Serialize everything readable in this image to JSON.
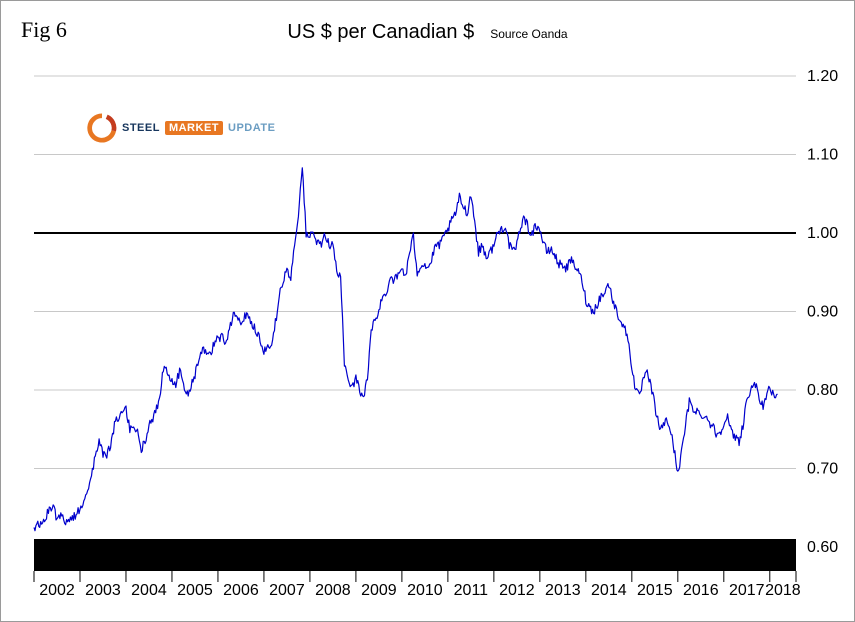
{
  "figure": {
    "label": "Fig 6",
    "title": "US $ per Canadian $",
    "source": "Source Oanda"
  },
  "logo": {
    "word1": "STEEL",
    "word2": "MARKET",
    "word3": "UPDATE",
    "swoosh_color": "#e87722",
    "swoosh_color2": "#c43c1e"
  },
  "chart_data": {
    "type": "line",
    "title": "US $ per Canadian $",
    "source": "Source Oanda",
    "frequency": "monthly",
    "start": "2002-01",
    "end": "2018-03",
    "x_tick_labels": [
      "2002",
      "2003",
      "2004",
      "2005",
      "2006",
      "2007",
      "2008",
      "2009",
      "2010",
      "2011",
      "2012",
      "2013",
      "2014",
      "2015",
      "2016",
      "2017",
      "2018"
    ],
    "y_ticks": [
      0.6,
      0.7,
      0.8,
      0.9,
      1.0,
      1.1,
      1.2
    ],
    "ylim": [
      0.6,
      1.2
    ],
    "xlim": [
      2002,
      2018.57
    ],
    "reference_line": 1.0,
    "grid": true,
    "line_color": "#0000cc",
    "axis_band_color": "#000000",
    "series": [
      {
        "name": "US $ per Canadian $",
        "values": [
          0.625,
          0.627,
          0.63,
          0.636,
          0.648,
          0.655,
          0.635,
          0.64,
          0.633,
          0.635,
          0.637,
          0.64,
          0.65,
          0.66,
          0.675,
          0.69,
          0.715,
          0.735,
          0.72,
          0.715,
          0.73,
          0.755,
          0.765,
          0.77,
          0.775,
          0.75,
          0.755,
          0.745,
          0.725,
          0.735,
          0.755,
          0.765,
          0.775,
          0.8,
          0.835,
          0.82,
          0.815,
          0.805,
          0.825,
          0.805,
          0.795,
          0.805,
          0.82,
          0.835,
          0.85,
          0.85,
          0.845,
          0.86,
          0.865,
          0.87,
          0.86,
          0.875,
          0.9,
          0.895,
          0.885,
          0.895,
          0.895,
          0.885,
          0.875,
          0.865,
          0.85,
          0.855,
          0.855,
          0.885,
          0.92,
          0.94,
          0.95,
          0.945,
          0.985,
          1.025,
          1.085,
          1.0,
          0.995,
          1.0,
          0.985,
          0.985,
          1.0,
          0.985,
          0.985,
          0.95,
          0.945,
          0.83,
          0.815,
          0.805,
          0.815,
          0.8,
          0.79,
          0.815,
          0.875,
          0.89,
          0.9,
          0.92,
          0.925,
          0.945,
          0.94,
          0.945,
          0.955,
          0.945,
          0.975,
          0.995,
          0.95,
          0.96,
          0.96,
          0.955,
          0.97,
          0.985,
          0.985,
          0.995,
          1.005,
          1.015,
          1.025,
          1.045,
          1.035,
          1.025,
          1.05,
          1.015,
          0.975,
          0.985,
          0.97,
          0.975,
          0.985,
          1.0,
          1.005,
          1.01,
          0.985,
          0.975,
          0.985,
          1.01,
          1.02,
          1.005,
          1.0,
          1.01,
          1.005,
          0.985,
          0.975,
          0.98,
          0.97,
          0.96,
          0.96,
          0.955,
          0.965,
          0.96,
          0.95,
          0.94,
          0.915,
          0.905,
          0.9,
          0.91,
          0.92,
          0.925,
          0.935,
          0.915,
          0.9,
          0.89,
          0.88,
          0.865,
          0.83,
          0.8,
          0.79,
          0.815,
          0.82,
          0.805,
          0.78,
          0.755,
          0.75,
          0.765,
          0.75,
          0.725,
          0.695,
          0.72,
          0.755,
          0.785,
          0.775,
          0.775,
          0.765,
          0.77,
          0.76,
          0.755,
          0.745,
          0.745,
          0.76,
          0.765,
          0.745,
          0.74,
          0.735,
          0.755,
          0.79,
          0.795,
          0.815,
          0.79,
          0.78,
          0.785,
          0.805,
          0.79,
          0.795
        ]
      }
    ]
  }
}
